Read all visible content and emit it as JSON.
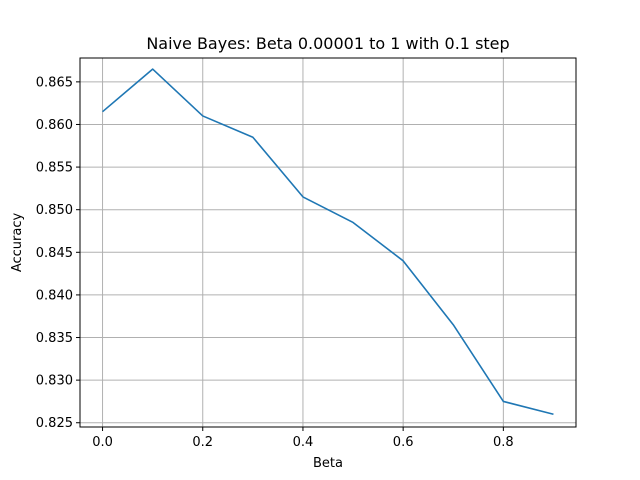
{
  "chart_data": {
    "type": "line",
    "title": "Naive Bayes: Beta 0.00001 to 1 with 0.1 step",
    "xlabel": "Beta",
    "ylabel": "Accuracy",
    "xlim": [
      -0.045,
      0.945
    ],
    "ylim": [
      0.8245,
      0.8678
    ],
    "grid": true,
    "line_color": "#1f77b4",
    "x_ticks": [
      0.0,
      0.2,
      0.4,
      0.6,
      0.8
    ],
    "x_tick_labels": [
      "0.0",
      "0.2",
      "0.4",
      "0.6",
      "0.8"
    ],
    "y_ticks": [
      0.825,
      0.83,
      0.835,
      0.84,
      0.845,
      0.85,
      0.855,
      0.86,
      0.865
    ],
    "y_tick_labels": [
      "0.825",
      "0.830",
      "0.835",
      "0.840",
      "0.845",
      "0.850",
      "0.855",
      "0.860",
      "0.865"
    ],
    "series": [
      {
        "x": [
          1e-05,
          0.1,
          0.2,
          0.3,
          0.4,
          0.5,
          0.6,
          0.7,
          0.8,
          0.9
        ],
        "values": [
          0.8615,
          0.8665,
          0.861,
          0.8585,
          0.8515,
          0.8485,
          0.844,
          0.8365,
          0.8275,
          0.826
        ]
      }
    ]
  }
}
